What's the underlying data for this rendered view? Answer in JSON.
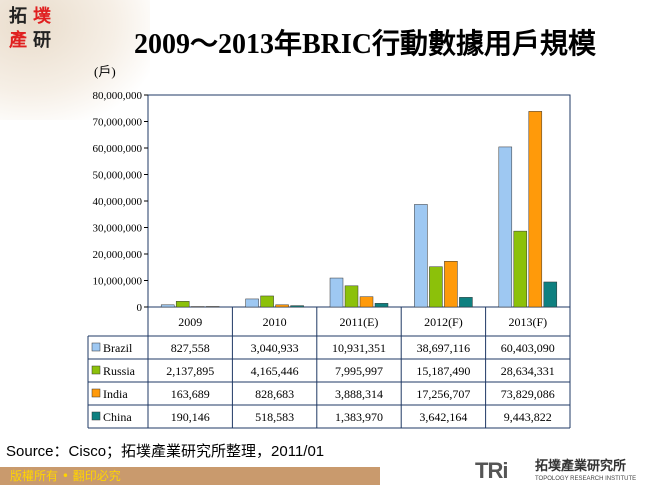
{
  "logo": {
    "chars": [
      "拓",
      "墣",
      "產",
      "研"
    ]
  },
  "title": "2009～2013年BRIC行動數據用戶規模",
  "unit": "(戶)",
  "chart_data": {
    "type": "bar",
    "title": "2009～2013年BRIC行動數據用戶規模",
    "ylabel": "(戶)",
    "ylim": [
      0,
      80000000
    ],
    "yticks": [
      "0",
      "10,000,000",
      "20,000,000",
      "30,000,000",
      "40,000,000",
      "50,000,000",
      "60,000,000",
      "70,000,000",
      "80,000,000"
    ],
    "categories": [
      "2009",
      "2010",
      "2011(E)",
      "2012(F)",
      "2013(F)"
    ],
    "series": [
      {
        "name": "Brazil",
        "color": "#9ec8f2",
        "values": [
          827558,
          3040933,
          10931351,
          38697116,
          60403090
        ],
        "labels": [
          "827,558",
          "3,040,933",
          "10,931,351",
          "38,697,116",
          "60,403,090"
        ]
      },
      {
        "name": "Russia",
        "color": "#8cc10a",
        "values": [
          2137895,
          4165446,
          7995997,
          15187490,
          28634331
        ],
        "labels": [
          "2,137,895",
          "4,165,446",
          "7,995,997",
          "15,187,490",
          "28,634,331"
        ]
      },
      {
        "name": "India",
        "color": "#ff9a0a",
        "values": [
          163689,
          828683,
          3888314,
          17256707,
          73829086
        ],
        "labels": [
          "163,689",
          "828,683",
          "3,888,314",
          "17,256,707",
          "73,829,086"
        ]
      },
      {
        "name": "China",
        "color": "#0e8080",
        "values": [
          190146,
          518583,
          1383970,
          3642164,
          9443822
        ],
        "labels": [
          "190,146",
          "518,583",
          "1,383,970",
          "3,642,164",
          "9,443,822"
        ]
      }
    ],
    "legend": "data-table"
  },
  "source": "Source：Cisco；拓墣產業研究所整理，2011/01",
  "footer": {
    "copyright": "版權所有 • 翻印必究",
    "brand_mark": "TRi",
    "brand_cn": "拓墣產業研究所",
    "brand_en": "TOPOLOGY RESEARCH INSTITUTE"
  }
}
